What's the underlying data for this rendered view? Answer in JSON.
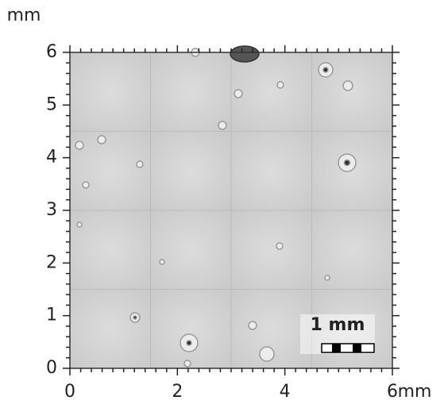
{
  "chart_data": {
    "type": "image",
    "x_label": "mm",
    "y_label": "mm",
    "xlim": [
      0,
      6
    ],
    "xticks": [
      0,
      2,
      4,
      6
    ],
    "ylim": [
      0,
      6
    ],
    "yticks": [
      0,
      1,
      2,
      3,
      4,
      5,
      6
    ],
    "scale_bar_label": "1 mm"
  }
}
